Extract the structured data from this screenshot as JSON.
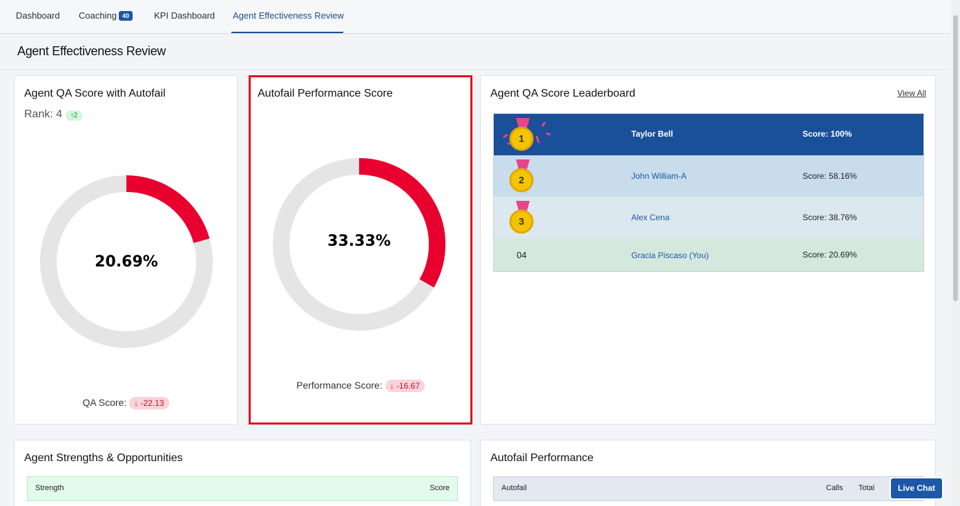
{
  "tabs": [
    {
      "label": "Dashboard"
    },
    {
      "label": "Coaching",
      "badge": "40"
    },
    {
      "label": "KPI Dashboard"
    },
    {
      "label": "Agent Effectiveness Review"
    }
  ],
  "page_title": "Agent Effectiveness Review",
  "qa_card": {
    "title": "Agent QA Score with Autofail",
    "rank_label": "Rank: 4",
    "rank_change": "2",
    "value": 20.69,
    "value_label": "20.69%",
    "footer_label": "QA Score:",
    "change": -22.13
  },
  "autofail_card": {
    "title": "Autofail Performance Score",
    "value": 33.33,
    "value_label": "33.33%",
    "footer_label": "Performance Score:",
    "change": -16.67
  },
  "leaderboard": {
    "title": "Agent QA Score Leaderboard",
    "view_all": "View All",
    "rows": [
      {
        "rank": "1",
        "name": "Taylor Bell",
        "score": "Score: 100%"
      },
      {
        "rank": "2",
        "name": "John William-A",
        "score": "Score: 58.16%"
      },
      {
        "rank": "3",
        "name": "Alex Cena",
        "score": "Score: 38.76%"
      },
      {
        "rank": "04",
        "name": "Gracia Piscaso (You)",
        "score": "Score: 20.69%"
      }
    ]
  },
  "strengths": {
    "title": "Agent Strengths & Opportunities",
    "columns": [
      "Strength",
      "Score"
    ]
  },
  "autofail_performance": {
    "title": "Autofail Performance",
    "columns": [
      "Autofail",
      "Calls",
      "Total"
    ]
  },
  "live_chat": "Live Chat"
}
